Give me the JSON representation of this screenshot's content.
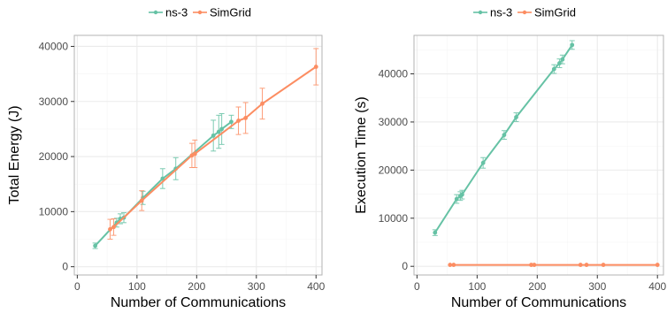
{
  "chart_data": [
    {
      "type": "line",
      "xlabel": "Number of Communications",
      "ylabel": "Total Energy (J)",
      "xlim": [
        -5,
        410
      ],
      "ylim": [
        -1500,
        42000
      ],
      "x_ticks": [
        0,
        100,
        200,
        300,
        400
      ],
      "y_ticks": [
        0,
        10000,
        20000,
        30000,
        40000
      ],
      "grid": true,
      "legend": "top-center",
      "series": [
        {
          "name": "ns-3",
          "color": "#66c2a5",
          "points": [
            {
              "x": 30,
              "y": 3800,
              "err": 500
            },
            {
              "x": 66,
              "y": 8000,
              "err": 800
            },
            {
              "x": 72,
              "y": 8700,
              "err": 900
            },
            {
              "x": 78,
              "y": 8900,
              "err": 900
            },
            {
              "x": 110,
              "y": 12500,
              "err": 1200
            },
            {
              "x": 143,
              "y": 16000,
              "err": 1800
            },
            {
              "x": 165,
              "y": 17800,
              "err": 2000
            },
            {
              "x": 228,
              "y": 23800,
              "err": 2800
            },
            {
              "x": 237,
              "y": 24500,
              "err": 3000
            },
            {
              "x": 242,
              "y": 25000,
              "err": 2800
            },
            {
              "x": 258,
              "y": 26300,
              "err": 1200
            }
          ]
        },
        {
          "name": "SimGrid",
          "color": "#fc8d62",
          "points": [
            {
              "x": 55,
              "y": 6800,
              "err": 1800
            },
            {
              "x": 61,
              "y": 7200,
              "err": 1500
            },
            {
              "x": 108,
              "y": 12000,
              "err": 1800
            },
            {
              "x": 192,
              "y": 20200,
              "err": 2200
            },
            {
              "x": 197,
              "y": 20500,
              "err": 2500
            },
            {
              "x": 270,
              "y": 26500,
              "err": 2500
            },
            {
              "x": 282,
              "y": 27000,
              "err": 2800
            },
            {
              "x": 310,
              "y": 29600,
              "err": 2800
            },
            {
              "x": 400,
              "y": 36300,
              "err": 3300
            }
          ]
        }
      ]
    },
    {
      "type": "line",
      "xlabel": "Number of Communications",
      "ylabel": "Execution Time (s)",
      "xlim": [
        -5,
        410
      ],
      "ylim": [
        -1800,
        48000
      ],
      "x_ticks": [
        0,
        100,
        200,
        300,
        400
      ],
      "y_ticks": [
        0,
        10000,
        20000,
        30000,
        40000
      ],
      "grid": true,
      "legend": "top-center",
      "series": [
        {
          "name": "ns-3",
          "color": "#66c2a5",
          "points": [
            {
              "x": 30,
              "y": 7000,
              "err": 600
            },
            {
              "x": 66,
              "y": 14000,
              "err": 900
            },
            {
              "x": 72,
              "y": 14600,
              "err": 900
            },
            {
              "x": 75,
              "y": 14900,
              "err": 900
            },
            {
              "x": 110,
              "y": 21500,
              "err": 1100
            },
            {
              "x": 145,
              "y": 27300,
              "err": 900
            },
            {
              "x": 165,
              "y": 31000,
              "err": 900
            },
            {
              "x": 228,
              "y": 41000,
              "err": 900
            },
            {
              "x": 237,
              "y": 42200,
              "err": 900
            },
            {
              "x": 242,
              "y": 43000,
              "err": 900
            },
            {
              "x": 258,
              "y": 46000,
              "err": 900
            }
          ]
        },
        {
          "name": "SimGrid",
          "color": "#fc8d62",
          "points": [
            {
              "x": 55,
              "y": 300,
              "err": 0
            },
            {
              "x": 61,
              "y": 300,
              "err": 0
            },
            {
              "x": 190,
              "y": 300,
              "err": 0
            },
            {
              "x": 195,
              "y": 300,
              "err": 0
            },
            {
              "x": 272,
              "y": 300,
              "err": 0
            },
            {
              "x": 282,
              "y": 300,
              "err": 0
            },
            {
              "x": 310,
              "y": 300,
              "err": 0
            },
            {
              "x": 400,
              "y": 300,
              "err": 0
            }
          ]
        }
      ]
    }
  ]
}
